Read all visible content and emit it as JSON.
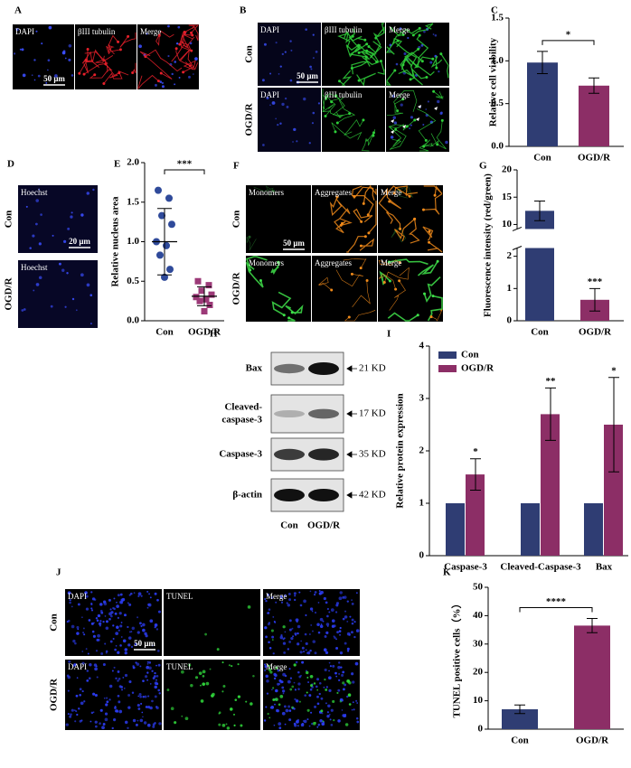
{
  "panel_labels": [
    "A",
    "B",
    "C",
    "D",
    "E",
    "F",
    "G",
    "H",
    "I",
    "J",
    "K"
  ],
  "images": {
    "A": {
      "channels": [
        "DAPI",
        "βIII tubulin",
        "Merge"
      ],
      "scale_bar": "50 μm"
    },
    "B": {
      "rows": [
        "Con",
        "OGD/R"
      ],
      "channels": [
        "DAPI",
        "βIII tubulin",
        "Merge"
      ],
      "scale_bar": "50 μm"
    },
    "D": {
      "rows": [
        "Con",
        "OGD/R"
      ],
      "channel": "Hoechst",
      "scale_bar": "20 μm"
    },
    "F": {
      "rows": [
        "Con",
        "OGD/R"
      ],
      "channels": [
        "Monomers",
        "Aggregates",
        "Merge"
      ],
      "scale_bar": "50 μm"
    },
    "J": {
      "rows": [
        "Con",
        "OGD/R"
      ],
      "channels": [
        "DAPI",
        "TUNEL",
        "Merge"
      ],
      "scale_bar": "50 μm"
    }
  },
  "blot": {
    "proteins": [
      [
        "Bax"
      ],
      [
        "Cleaved-",
        "caspase-3"
      ],
      [
        "Caspase-3"
      ],
      [
        "β-actin"
      ]
    ],
    "sizes": [
      "21 KD",
      "17 KD",
      "35 KD",
      "42 KD"
    ],
    "groups": [
      "Con",
      "OGD/R"
    ]
  },
  "chart_data": [
    {
      "type": "bar",
      "ylabel": "Relative cell viability",
      "categories": [
        "Con",
        "OGD/R"
      ],
      "values": [
        0.98,
        0.71
      ],
      "errors": [
        0.13,
        0.09
      ],
      "colors": [
        "#2f3d73",
        "#8c2e66"
      ],
      "ylim": [
        0,
        1.5
      ],
      "yticks": [
        {
          "value": 0,
          "label": "0.0"
        },
        0.5,
        {
          "value": 1,
          "label": "1.0"
        },
        1.5
      ],
      "significance": "*"
    },
    {
      "type": "scatter",
      "ylabel": "Relative nucleus area",
      "categories": [
        "Con",
        "OGD/R"
      ],
      "values": [
        [
          1.65,
          1.55,
          1.33,
          1.22,
          1.0,
          0.95,
          0.83,
          0.65,
          0.55
        ],
        [
          0.5,
          0.45,
          0.38,
          0.33,
          0.3,
          0.27,
          0.25,
          0.2,
          0.12
        ]
      ],
      "means": [
        1.0,
        0.31
      ],
      "sd": [
        0.42,
        0.12
      ],
      "colors": [
        "#2f4a9a",
        "#9c3a78"
      ],
      "markers": [
        "circle",
        "square"
      ],
      "ylim": [
        0,
        2
      ],
      "yticks": [
        {
          "value": 0,
          "label": "0.0"
        },
        0.5,
        {
          "value": 1,
          "label": "1.0"
        },
        1.5,
        {
          "value": 2,
          "label": "2.0"
        }
      ],
      "significance": "***"
    },
    {
      "type": "bar",
      "ylabel": "Fluorescence intensity (red/green)",
      "categories": [
        "Con",
        "OGD/R"
      ],
      "values": [
        12.5,
        0.65
      ],
      "errors": [
        1.8,
        0.35
      ],
      "colors": [
        "#2f3d73",
        "#8c2e66"
      ],
      "ylim": [
        0,
        20
      ],
      "axis_break": [
        2.2,
        9.5
      ],
      "yticks": [
        0,
        1,
        2,
        10,
        15,
        20
      ],
      "annotations": [
        null,
        "***"
      ]
    },
    {
      "type": "grouped_bar",
      "ylabel": "Relative protein expression",
      "categories": [
        "Caspase-3",
        "Cleaved-Caspase-3",
        "Bax"
      ],
      "series": [
        {
          "name": "Con",
          "color": "#2f3d73",
          "values": [
            1,
            1,
            1
          ]
        },
        {
          "name": "OGD/R",
          "color": "#8c2e66",
          "values": [
            1.55,
            2.7,
            2.5
          ],
          "errors": [
            0.3,
            0.5,
            0.9
          ],
          "annotations": [
            "*",
            "**",
            "*"
          ]
        }
      ],
      "ylim": [
        0,
        4
      ],
      "yticks": [
        0,
        1,
        2,
        3,
        4
      ],
      "legend": "upper left"
    },
    {
      "type": "bar",
      "ylabel": "TUNEL positive cells（%）",
      "categories": [
        "Con",
        "OGD/R"
      ],
      "values": [
        7,
        36.5
      ],
      "errors": [
        1.5,
        2.5
      ],
      "colors": [
        "#2f3d73",
        "#8c2e66"
      ],
      "ylim": [
        0,
        50
      ],
      "yticks": [
        0,
        10,
        20,
        30,
        40,
        50
      ],
      "significance": "****"
    }
  ]
}
